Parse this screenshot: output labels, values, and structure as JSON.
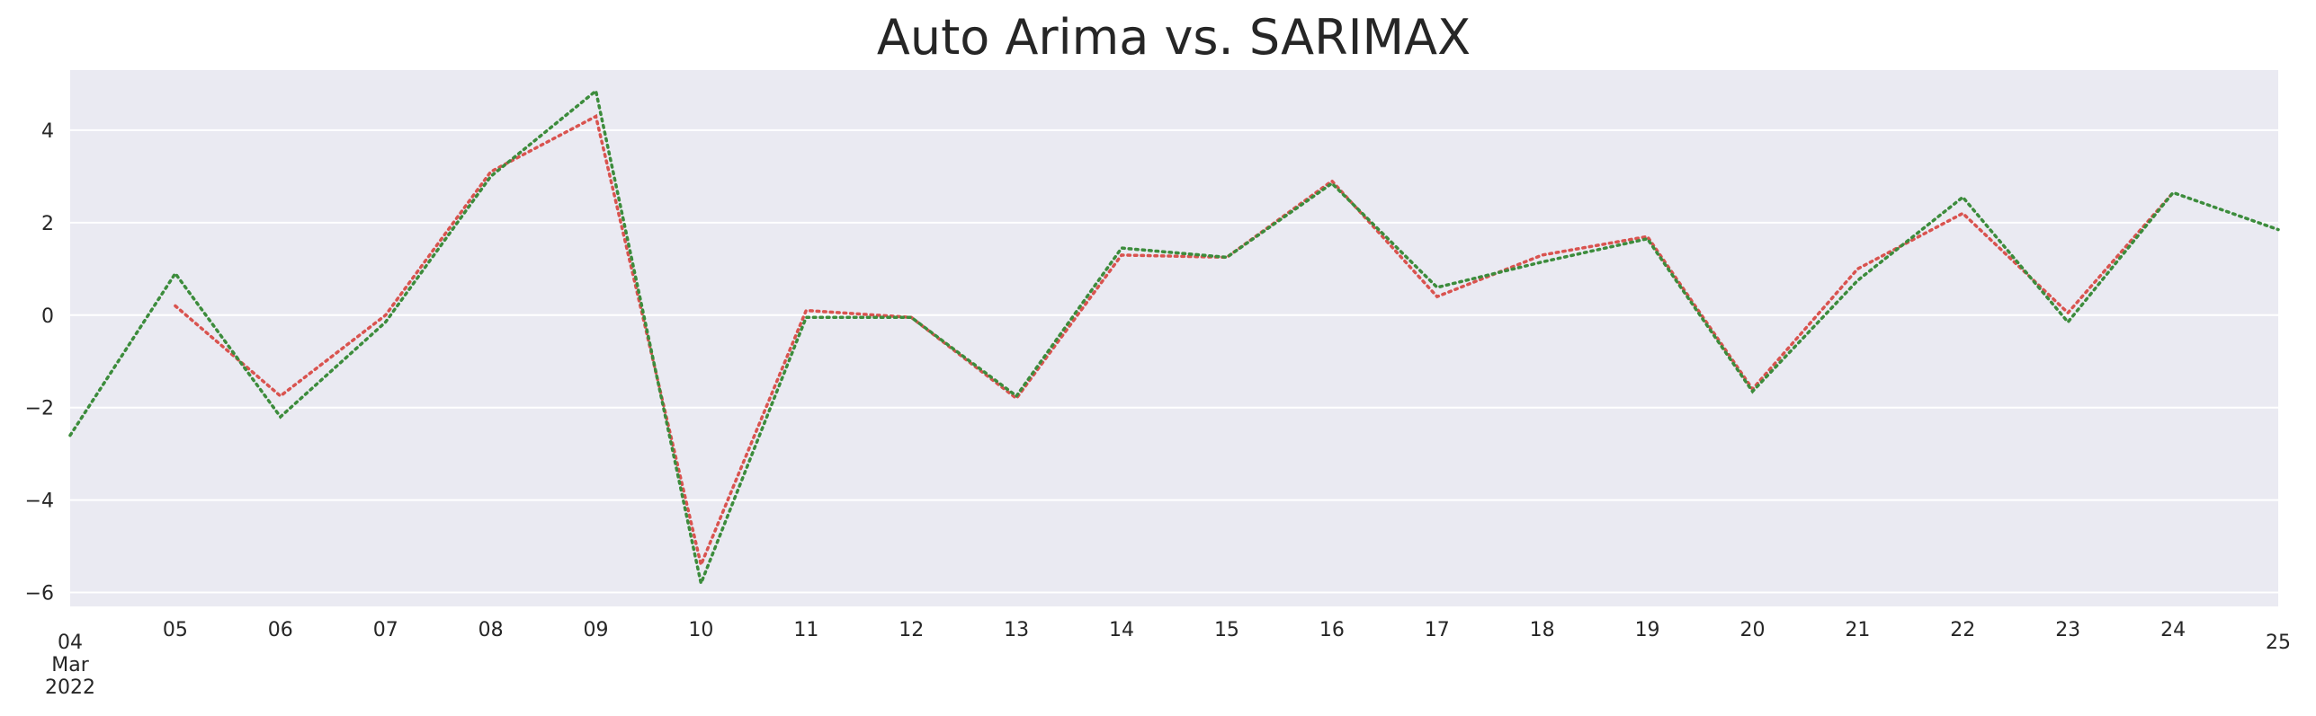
{
  "chart_data": {
    "type": "line",
    "title": "Auto Arima vs. SARIMAX",
    "xlabel": "",
    "ylabel": "",
    "x": [
      "2022-03-04",
      "2022-03-05",
      "2022-03-06",
      "2022-03-07",
      "2022-03-08",
      "2022-03-09",
      "2022-03-10",
      "2022-03-11",
      "2022-03-12",
      "2022-03-13",
      "2022-03-14",
      "2022-03-15",
      "2022-03-16",
      "2022-03-17",
      "2022-03-18",
      "2022-03-19",
      "2022-03-20",
      "2022-03-21",
      "2022-03-22",
      "2022-03-23",
      "2022-03-24",
      "2022-03-25"
    ],
    "x_tick_labels": [
      "04\nMar\n2022",
      "05",
      "06",
      "07",
      "08",
      "09",
      "10",
      "11",
      "12",
      "13",
      "14",
      "15",
      "16",
      "17",
      "18",
      "19",
      "20",
      "21",
      "22",
      "23",
      "24",
      "25"
    ],
    "y_ticks": [
      4,
      2,
      0,
      -2,
      -4,
      -6
    ],
    "y_tick_labels": [
      "4",
      "2",
      "0",
      "−2",
      "−4",
      "−6"
    ],
    "ylim": [
      -6.3,
      5.3
    ],
    "grid": true,
    "series": [
      {
        "color": "#d9534f",
        "linestyle": "dotted",
        "values": [
          null,
          0.2,
          -1.75,
          0.0,
          3.1,
          4.3,
          -5.4,
          0.1,
          -0.05,
          -1.8,
          1.3,
          1.25,
          2.9,
          0.4,
          1.3,
          1.7,
          -1.6,
          1.0,
          2.2,
          0.05,
          2.65,
          null
        ]
      },
      {
        "color": "#3c8c3c",
        "linestyle": "dotted",
        "values": [
          -2.6,
          0.9,
          -2.2,
          -0.15,
          3.0,
          4.85,
          -5.8,
          -0.05,
          -0.05,
          -1.75,
          1.45,
          1.25,
          2.85,
          0.6,
          1.15,
          1.65,
          -1.65,
          0.75,
          2.55,
          -0.15,
          2.65,
          1.85
        ]
      }
    ],
    "colors": {
      "plot_background": "#eaeaf2",
      "grid": "#ffffff",
      "text": "#262626"
    }
  }
}
